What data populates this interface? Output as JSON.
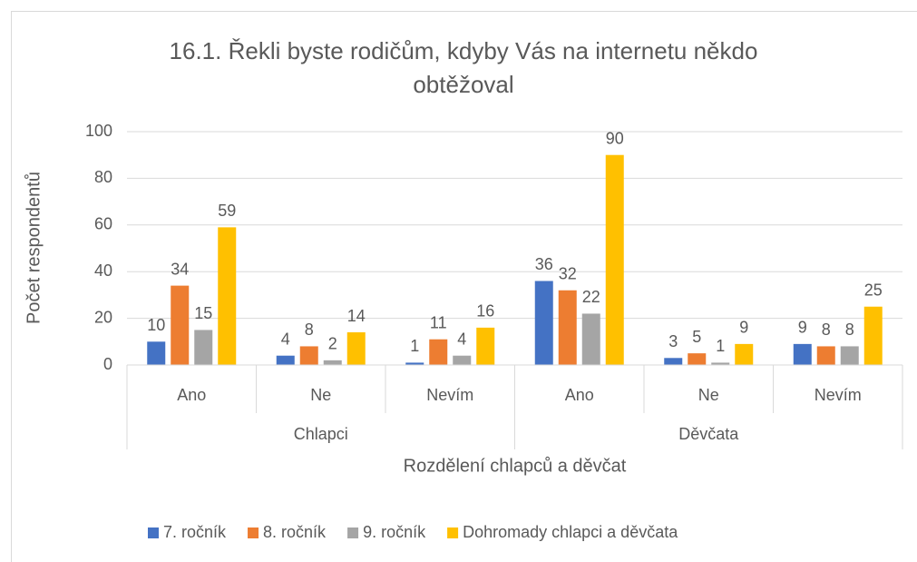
{
  "chart_data": {
    "type": "bar",
    "title": "16.1. Řekli byste rodičům, kdyby Vás na internetu někdo obtěžoval",
    "category_groups": [
      {
        "label": "Chlapci",
        "categories": [
          "Ano",
          "Ne",
          "Nevím"
        ]
      },
      {
        "label": "Děvčata",
        "categories": [
          "Ano",
          "Ne",
          "Nevím"
        ]
      }
    ],
    "series": [
      {
        "name": "7. ročník",
        "color": "#4472c4",
        "values": [
          10,
          4,
          1,
          36,
          3,
          9
        ]
      },
      {
        "name": "8. ročník",
        "color": "#ed7d31",
        "values": [
          34,
          8,
          11,
          32,
          5,
          8
        ]
      },
      {
        "name": "9. ročník",
        "color": "#a5a5a5",
        "values": [
          15,
          2,
          4,
          22,
          1,
          8
        ]
      },
      {
        "name": "Dohromady chlapci a děvčata",
        "color": "#ffc000",
        "values": [
          59,
          14,
          16,
          90,
          9,
          25
        ]
      }
    ],
    "ylabel": "Počet respondentů",
    "xlabel": "Rozdělení chlapců a děvčat",
    "ylim": [
      0,
      100
    ],
    "yticks": [
      0,
      20,
      40,
      60,
      80,
      100
    ],
    "grid": true,
    "legend": "bottom"
  }
}
